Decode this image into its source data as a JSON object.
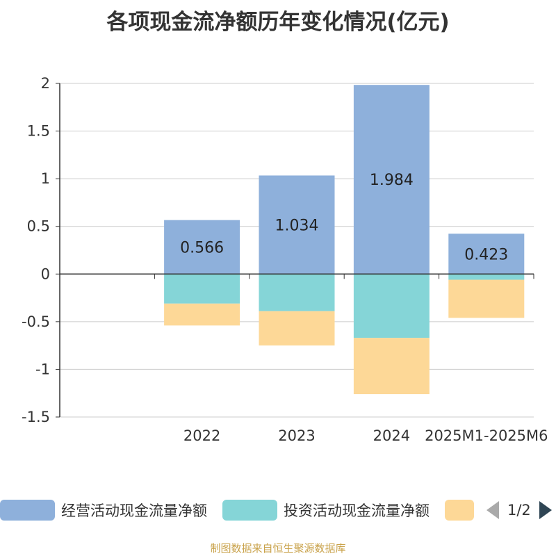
{
  "chart_data": {
    "type": "bar",
    "stacked": true,
    "title": "各项现金流净额历年变化情况(亿元)",
    "categories": [
      "2022",
      "2023",
      "2024",
      "2025M1-2025M6"
    ],
    "ylim": [
      -1.5,
      2
    ],
    "yticks": [
      2,
      1.5,
      1,
      0.5,
      0,
      -0.5,
      -1,
      -1.5
    ],
    "ytick_labels": [
      "2",
      "1.5",
      "1",
      "0.5",
      "0",
      "-0.5",
      "-1",
      "-1.5"
    ],
    "series": [
      {
        "name": "经营活动现金流量净额",
        "color": "#8eb0db",
        "values": [
          0.566,
          1.034,
          1.984,
          0.423
        ],
        "labels": [
          "0.566",
          "1.034",
          "1.984",
          "0.423"
        ]
      },
      {
        "name": "投资活动现金流量净额",
        "color": "#85d5d7",
        "values": [
          -0.31,
          -0.39,
          -0.67,
          -0.06
        ]
      },
      {
        "name": "",
        "color": "#fdd897",
        "values": [
          -0.23,
          -0.36,
          -0.59,
          -0.4
        ]
      }
    ],
    "legend_position": "bottom"
  },
  "legend": {
    "pager_text": "1/2"
  },
  "source": "制图数据来自恒生聚源数据库"
}
